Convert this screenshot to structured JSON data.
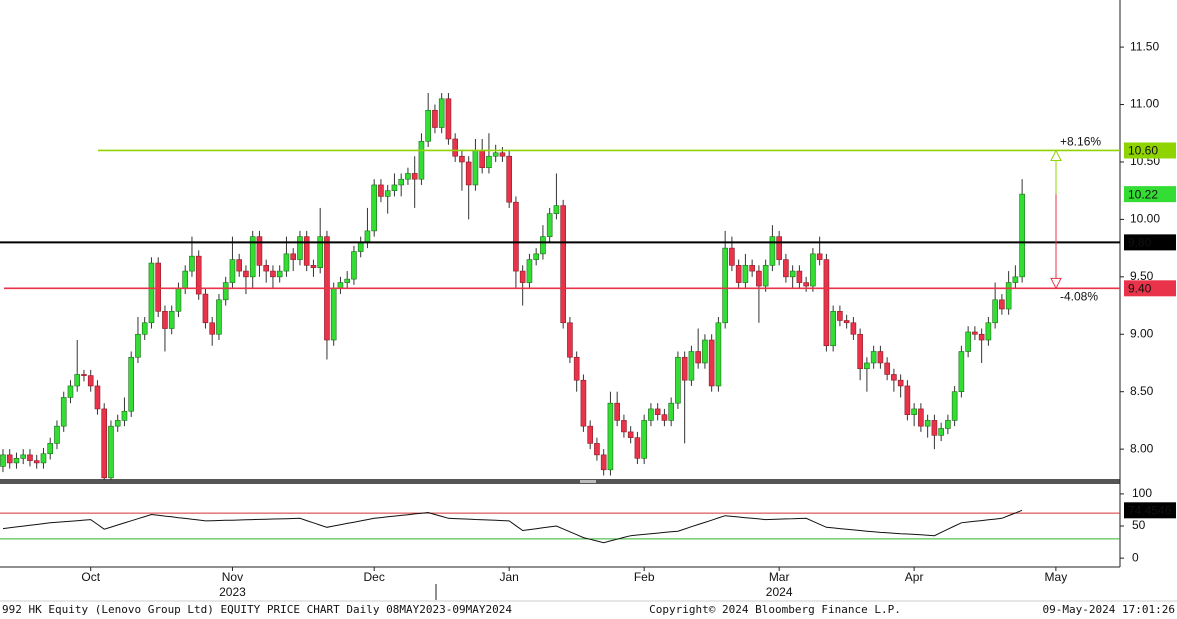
{
  "chart_data": [
    {
      "type": "candlestick",
      "categories": [
        null,
        null,
        null,
        null,
        null,
        null,
        null,
        null,
        null,
        null,
        null,
        null,
        null,
        null,
        null,
        null,
        null,
        null,
        null,
        null,
        null,
        null,
        null,
        null,
        null,
        null,
        null,
        null,
        null,
        null,
        null,
        null,
        null,
        null,
        null,
        null,
        null,
        null,
        null,
        null,
        null,
        null,
        null,
        null,
        null,
        null,
        null,
        null,
        null,
        null,
        null,
        null,
        null,
        null,
        null,
        null,
        null,
        null,
        null,
        null,
        null,
        null,
        null,
        null,
        null,
        null,
        null,
        null,
        null,
        null,
        null,
        null,
        null,
        null,
        null,
        null,
        null,
        null,
        null,
        null,
        null,
        null,
        null,
        null,
        null,
        null,
        null,
        null,
        null,
        null,
        null,
        null,
        null,
        null,
        null,
        null,
        null,
        null,
        null,
        null,
        null,
        null,
        null,
        null,
        null,
        null,
        null,
        null,
        null,
        null,
        null,
        null,
        null,
        null,
        null,
        null,
        null,
        null,
        null,
        null,
        null,
        null,
        null,
        null,
        null,
        null,
        null,
        null,
        null,
        null,
        null,
        null,
        null,
        null,
        null,
        null,
        null,
        null,
        null,
        null,
        null,
        null,
        null,
        null,
        null,
        null,
        null,
        null,
        null,
        null,
        null,
        null
      ],
      "open": [
        7.85,
        7.95,
        7.88,
        7.92,
        7.95,
        7.9,
        7.88,
        7.96,
        8.05,
        8.2,
        8.45,
        8.55,
        8.65,
        8.64,
        8.55,
        8.35,
        7.75,
        8.2,
        8.25,
        8.33,
        8.8,
        9.0,
        9.1,
        9.62,
        9.2,
        9.05,
        9.2,
        9.4,
        9.55,
        9.68,
        9.35,
        9.1,
        9.0,
        9.3,
        9.45,
        9.65,
        9.55,
        9.5,
        9.85,
        9.6,
        9.55,
        9.5,
        9.55,
        9.7,
        9.65,
        9.85,
        9.6,
        9.58,
        9.85,
        8.95,
        9.4,
        9.45,
        9.48,
        9.72,
        9.8,
        9.9,
        10.3,
        10.2,
        10.25,
        10.3,
        10.35,
        10.4,
        10.35,
        10.68,
        10.95,
        10.8,
        11.05,
        10.7,
        10.55,
        10.5,
        10.3,
        10.6,
        10.45,
        10.55,
        10.58,
        10.55,
        10.15,
        9.55,
        9.45,
        9.65,
        9.7,
        9.85,
        10.05,
        10.12,
        9.1,
        8.8,
        8.6,
        8.2,
        8.05,
        7.95,
        7.82,
        8.4,
        8.25,
        8.15,
        8.1,
        7.92,
        8.25,
        8.35,
        8.3,
        8.25,
        8.4,
        8.8,
        8.6,
        8.85,
        8.75,
        8.95,
        8.55,
        9.1,
        9.75,
        9.6,
        9.45,
        9.6,
        9.55,
        9.42,
        9.6,
        9.85,
        9.65,
        9.5,
        9.55,
        9.45,
        9.42,
        9.7,
        9.65,
        8.9,
        9.2,
        9.12,
        9.1,
        9.0,
        8.7,
        8.75,
        8.85,
        8.75,
        8.65,
        8.6,
        8.55,
        8.3,
        8.35,
        8.2,
        8.25,
        8.12,
        8.18,
        8.25,
        8.5,
        8.85,
        9.02,
        9.0,
        8.95,
        9.1,
        9.3,
        9.22,
        9.45,
        9.5
      ],
      "high": [
        8.0,
        8.0,
        7.97,
        8.0,
        8.0,
        7.95,
        8.01,
        8.1,
        8.25,
        8.5,
        8.6,
        8.95,
        8.69,
        8.69,
        8.6,
        8.4,
        8.25,
        8.3,
        8.45,
        8.85,
        9.15,
        9.15,
        9.67,
        9.67,
        9.25,
        9.25,
        9.45,
        9.6,
        9.85,
        9.73,
        9.4,
        9.15,
        9.35,
        9.5,
        9.85,
        9.7,
        9.6,
        9.9,
        9.9,
        9.65,
        9.6,
        9.6,
        9.85,
        9.75,
        9.9,
        9.9,
        9.65,
        10.1,
        9.9,
        9.45,
        9.5,
        9.55,
        9.77,
        9.85,
        10.1,
        10.35,
        10.35,
        10.3,
        10.4,
        10.4,
        10.45,
        10.55,
        10.75,
        11.1,
        11.0,
        11.1,
        11.1,
        10.75,
        10.6,
        10.55,
        10.7,
        10.7,
        10.75,
        10.65,
        10.63,
        10.6,
        10.2,
        9.6,
        9.7,
        9.75,
        9.95,
        10.1,
        10.4,
        10.17,
        9.15,
        8.85,
        8.65,
        8.25,
        8.1,
        8.0,
        8.5,
        8.5,
        8.3,
        8.2,
        8.15,
        8.3,
        8.4,
        8.4,
        8.35,
        8.45,
        8.85,
        8.85,
        8.9,
        9.05,
        9.0,
        9.0,
        9.15,
        9.9,
        9.85,
        9.65,
        9.7,
        9.65,
        9.6,
        9.65,
        9.95,
        9.9,
        9.7,
        9.6,
        9.6,
        9.5,
        9.75,
        9.85,
        9.7,
        9.25,
        9.25,
        9.17,
        9.15,
        9.05,
        8.8,
        8.9,
        8.9,
        8.8,
        8.7,
        8.65,
        8.6,
        8.4,
        8.4,
        8.3,
        8.3,
        8.23,
        8.3,
        8.55,
        8.9,
        9.07,
        9.07,
        9.05,
        9.15,
        9.45,
        9.35,
        9.55,
        9.6,
        10.35
      ],
      "low": [
        7.8,
        7.83,
        7.83,
        7.87,
        7.85,
        7.83,
        7.83,
        7.91,
        8.0,
        8.15,
        8.4,
        8.5,
        8.59,
        8.5,
        8.3,
        7.73,
        7.73,
        8.15,
        8.2,
        8.28,
        8.75,
        8.95,
        9.05,
        9.15,
        8.85,
        9.0,
        9.15,
        9.35,
        9.5,
        9.3,
        9.05,
        8.9,
        8.95,
        9.25,
        9.4,
        9.5,
        9.35,
        9.4,
        9.5,
        9.45,
        9.4,
        9.45,
        9.5,
        9.55,
        9.6,
        9.55,
        9.5,
        9.53,
        8.78,
        8.9,
        9.35,
        9.4,
        9.43,
        9.67,
        9.75,
        9.85,
        10.15,
        10.05,
        10.2,
        10.2,
        10.3,
        10.1,
        10.3,
        10.63,
        10.75,
        10.75,
        10.65,
        10.5,
        10.25,
        10.0,
        10.25,
        10.4,
        10.4,
        10.5,
        10.5,
        10.1,
        9.4,
        9.25,
        9.4,
        9.6,
        9.65,
        9.8,
        10.0,
        9.05,
        8.75,
        8.5,
        8.15,
        8.0,
        7.9,
        7.77,
        7.77,
        8.2,
        8.1,
        8.05,
        7.87,
        7.87,
        8.2,
        8.25,
        8.2,
        8.2,
        8.35,
        8.05,
        8.55,
        8.7,
        8.7,
        8.5,
        8.5,
        9.05,
        9.55,
        9.4,
        9.4,
        9.5,
        9.1,
        9.37,
        9.55,
        9.6,
        9.45,
        9.4,
        9.4,
        9.37,
        9.37,
        9.6,
        8.85,
        8.85,
        9.07,
        9.05,
        8.95,
        8.6,
        8.5,
        8.7,
        8.7,
        8.6,
        8.5,
        8.45,
        8.25,
        8.2,
        8.15,
        8.1,
        8.0,
        8.07,
        8.13,
        8.2,
        8.45,
        8.8,
        8.95,
        8.75,
        8.9,
        9.05,
        9.17,
        9.17,
        9.4,
        9.45
      ],
      "close": [
        7.95,
        7.88,
        7.92,
        7.95,
        7.9,
        7.88,
        7.96,
        8.05,
        8.2,
        8.45,
        8.55,
        8.65,
        8.64,
        8.55,
        8.35,
        7.75,
        8.2,
        8.25,
        8.33,
        8.8,
        9.0,
        9.1,
        9.62,
        9.2,
        9.05,
        9.2,
        9.4,
        9.55,
        9.68,
        9.35,
        9.1,
        9.0,
        9.3,
        9.45,
        9.65,
        9.55,
        9.5,
        9.85,
        9.6,
        9.55,
        9.5,
        9.55,
        9.7,
        9.65,
        9.85,
        9.6,
        9.58,
        9.85,
        8.95,
        9.4,
        9.45,
        9.48,
        9.72,
        9.8,
        9.9,
        10.3,
        10.2,
        10.25,
        10.3,
        10.35,
        10.4,
        10.35,
        10.68,
        10.95,
        10.8,
        11.05,
        10.7,
        10.55,
        10.5,
        10.3,
        10.6,
        10.45,
        10.55,
        10.58,
        10.55,
        10.15,
        9.55,
        9.45,
        9.65,
        9.7,
        9.85,
        10.05,
        10.12,
        9.1,
        8.8,
        8.6,
        8.2,
        8.05,
        7.95,
        7.82,
        8.4,
        8.25,
        8.15,
        8.1,
        7.92,
        8.25,
        8.35,
        8.3,
        8.25,
        8.4,
        8.8,
        8.6,
        8.85,
        8.75,
        8.95,
        8.55,
        9.1,
        9.75,
        9.6,
        9.45,
        9.6,
        9.55,
        9.42,
        9.6,
        9.85,
        9.65,
        9.5,
        9.55,
        9.45,
        9.42,
        9.7,
        9.65,
        8.9,
        9.2,
        9.12,
        9.1,
        9.0,
        8.7,
        8.75,
        8.85,
        8.75,
        8.65,
        8.6,
        8.55,
        8.3,
        8.35,
        8.2,
        8.25,
        8.12,
        8.18,
        8.25,
        8.5,
        8.85,
        9.02,
        9.0,
        8.95,
        9.1,
        9.3,
        9.22,
        9.45,
        9.5,
        10.22
      ],
      "up_color": "#33dd33",
      "down_color": "#e8334a",
      "xlim": [
        -0.44,
        165.5
      ],
      "xticks": [
        {
          "value": 13,
          "label": "Oct"
        },
        {
          "value": 34,
          "label": "Nov"
        },
        {
          "value": 55,
          "label": "Dec"
        },
        {
          "value": 75,
          "label": "Jan"
        },
        {
          "value": 95,
          "label": "Feb"
        },
        {
          "value": 115,
          "label": "Mar"
        },
        {
          "value": 135,
          "label": "Apr"
        },
        {
          "value": 156,
          "label": "May"
        }
      ],
      "year_labels": [
        {
          "value": 34,
          "label": "2023"
        },
        {
          "value": 115,
          "label": "2024"
        }
      ],
      "ylim": [
        7.74,
        11.91
      ],
      "yticks": [
        {
          "value": 8,
          "label": "8.00"
        },
        {
          "value": 8.5,
          "label": "8.50"
        },
        {
          "value": 9,
          "label": "9.00"
        },
        {
          "value": 9.5,
          "label": "9.50"
        },
        {
          "value": 10,
          "label": "10.00"
        },
        {
          "value": 10.5,
          "label": "10.50"
        },
        {
          "value": 11,
          "label": "11.00"
        },
        {
          "value": 11.5,
          "label": "11.50"
        }
      ],
      "hlines": [
        {
          "value": 10.6,
          "label": "10.60",
          "color": "#8fd400",
          "note": "+8.16%"
        },
        {
          "value": 9.8,
          "label": "9.80",
          "color": "#000000"
        },
        {
          "value": 9.4,
          "label": "9.40",
          "color": "#e8334a",
          "note": "-4.08%"
        }
      ]
    },
    {
      "type": "line",
      "values": [
        46,
        47.3,
        48.6,
        49.9,
        51.1,
        52.4,
        53.7,
        55,
        55.8,
        56.7,
        57.5,
        58.3,
        59.2,
        60,
        52.5,
        45,
        48.3,
        51.6,
        54.9,
        58.1,
        61.4,
        64.7,
        68,
        66.8,
        65.5,
        64.3,
        63,
        61.8,
        60.5,
        59.3,
        58,
        58.3,
        58.6,
        58.9,
        59.1,
        59.4,
        59.7,
        60,
        60.3,
        60.6,
        60.9,
        61.1,
        61.4,
        61.7,
        62,
        58.5,
        55,
        51.5,
        48,
        50,
        52,
        54,
        56,
        58,
        60,
        62,
        63.1,
        64.3,
        65.4,
        66.5,
        67.6,
        68.8,
        69.9,
        71,
        68,
        65,
        62,
        61.6,
        61.1,
        60.7,
        60.2,
        59.8,
        59.3,
        58.9,
        58.4,
        58,
        50.5,
        43,
        44.4,
        45.8,
        47.2,
        48.6,
        50,
        45.5,
        41,
        36.5,
        32,
        29.3,
        26.7,
        24,
        26.8,
        29.5,
        32.3,
        35,
        36,
        37,
        38,
        39,
        40,
        41,
        42,
        45.4,
        48.9,
        52.3,
        55.7,
        59.1,
        62.6,
        66,
        65,
        64,
        63,
        62,
        61,
        60,
        60.3,
        60.7,
        61,
        61.3,
        61.7,
        62,
        57.3,
        52.7,
        48,
        47,
        46,
        45,
        44,
        43,
        42,
        41,
        40,
        39.4,
        38.8,
        38.1,
        37.5,
        36.9,
        36.3,
        35.6,
        35,
        40,
        45,
        50,
        55,
        56.2,
        57.3,
        58.5,
        59.7,
        60.8,
        62,
        66.2,
        70.3,
        74.4546
      ],
      "color": "#111111",
      "ylim": [
        -13.8,
        115.4
      ],
      "yticks": [
        0,
        50,
        100
      ],
      "hlines": [
        {
          "value": 70,
          "color": "#d03030"
        },
        {
          "value": 30,
          "color": "#30b030"
        }
      ]
    }
  ],
  "footer": {
    "left": "992 HK Equity (Lenovo Group Ltd) EQUITY PRICE CHART  Daily 08MAY2023-09MAY2024",
    "center": "Copyright© 2024 Bloomberg Finance L.P.",
    "right": "09-May-2024 17:01:26"
  }
}
